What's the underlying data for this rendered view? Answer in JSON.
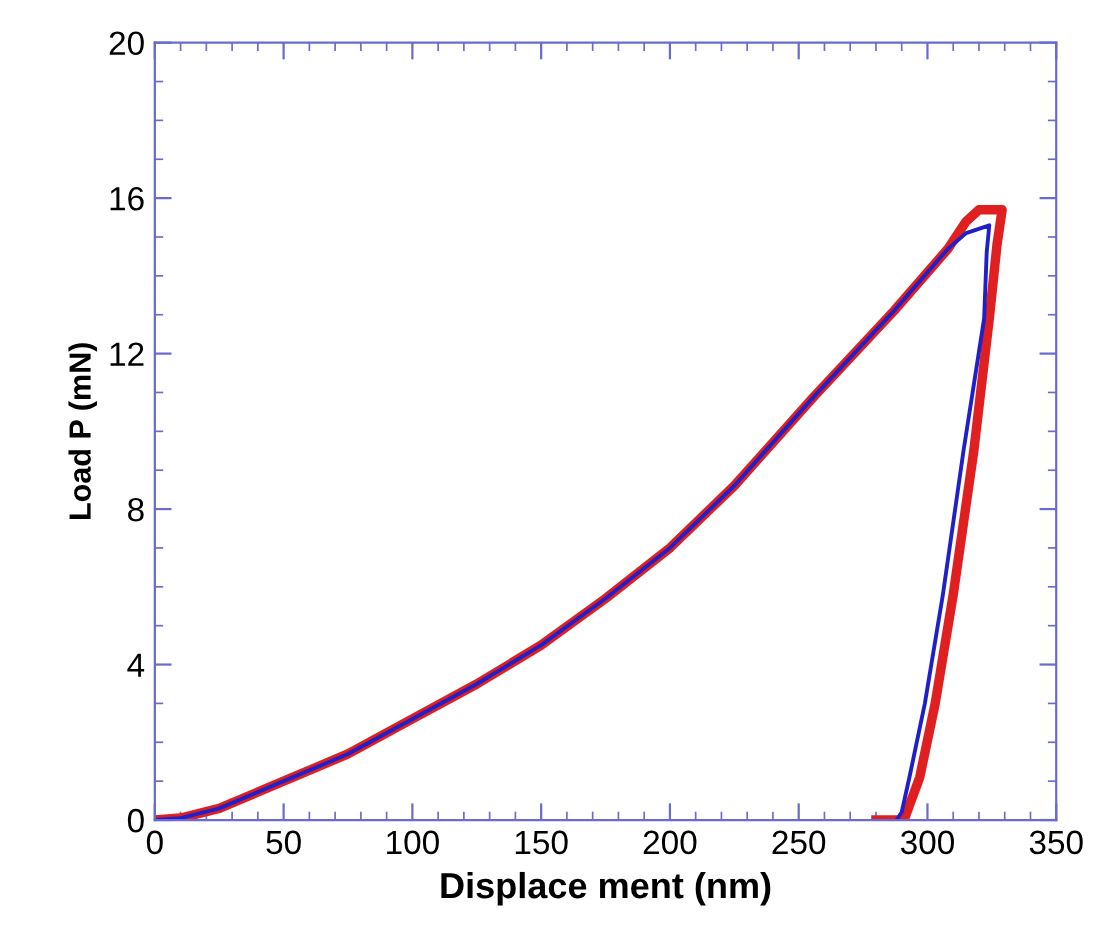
{
  "chart_data": {
    "type": "line",
    "xlabel": "Displace ment (nm)",
    "ylabel": "Load P (mN)",
    "xlim": [
      0,
      350
    ],
    "xticks": [
      0,
      50,
      100,
      150,
      200,
      250,
      300,
      350
    ],
    "ylim": [
      0,
      20
    ],
    "yticks": [
      0,
      4,
      8,
      12,
      16,
      20
    ],
    "grid": false,
    "legend": false,
    "marker": "none",
    "line_style": "solid",
    "series": [
      {
        "color": "#e02020",
        "x": [
          0,
          10,
          25,
          50,
          75,
          100,
          125,
          150,
          175,
          200,
          225,
          256,
          287,
          308,
          315,
          320,
          329,
          327,
          324,
          318,
          310,
          303,
          297,
          292,
          291,
          280
        ],
        "values": [
          0,
          0.05,
          0.3,
          1.0,
          1.7,
          2.6,
          3.5,
          4.5,
          5.7,
          7.0,
          8.6,
          10.9,
          13.1,
          14.7,
          15.4,
          15.7,
          15.7,
          14.8,
          12.9,
          9.5,
          5.8,
          3.0,
          1.1,
          0.2,
          0,
          0
        ]
      },
      {
        "color": "#2020c8",
        "x": [
          0,
          10,
          25,
          50,
          75,
          100,
          125,
          150,
          175,
          200,
          225,
          256,
          287,
          308,
          315,
          324,
          323,
          322,
          314,
          306,
          299,
          293,
          290,
          288
        ],
        "values": [
          0,
          0.05,
          0.3,
          1.0,
          1.7,
          2.6,
          3.5,
          4.5,
          5.7,
          7.0,
          8.6,
          10.9,
          13.1,
          14.7,
          15.1,
          15.3,
          14.6,
          12.9,
          9.5,
          5.8,
          3.0,
          1.1,
          0.2,
          0
        ]
      }
    ]
  }
}
